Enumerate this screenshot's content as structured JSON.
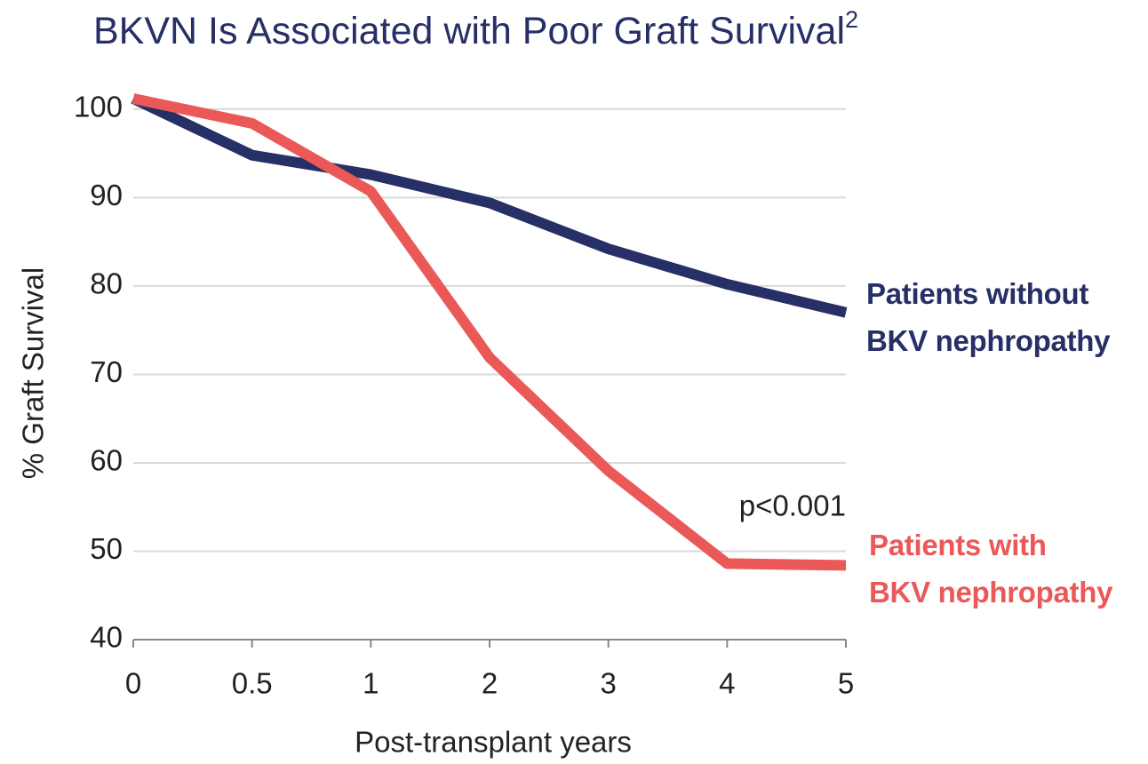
{
  "chart_data": {
    "type": "line",
    "title": "BKVN Is Associated with Poor Graft Survival",
    "title_footnote": "2",
    "x_label": "Post-transplant years",
    "y_label": "% Graft Survival",
    "annotation": "p<0.001",
    "categories": [
      "0",
      "0.5",
      "1",
      "2",
      "3",
      "4",
      "5"
    ],
    "series": [
      {
        "name": "Patients without\nBKV nephropathy",
        "color": "#262f66",
        "values": [
          101.2,
          94.8,
          92.6,
          89.4,
          84.2,
          80.2,
          77.0
        ]
      },
      {
        "name": "Patients with\nBKV nephropathy",
        "color": "#eb5858",
        "values": [
          101.2,
          98.4,
          90.7,
          71.9,
          59.1,
          48.6,
          48.4
        ]
      }
    ],
    "ylim": [
      40,
      102
    ],
    "yticks": [
      40,
      50,
      60,
      70,
      80,
      90,
      100
    ],
    "grid": true
  }
}
